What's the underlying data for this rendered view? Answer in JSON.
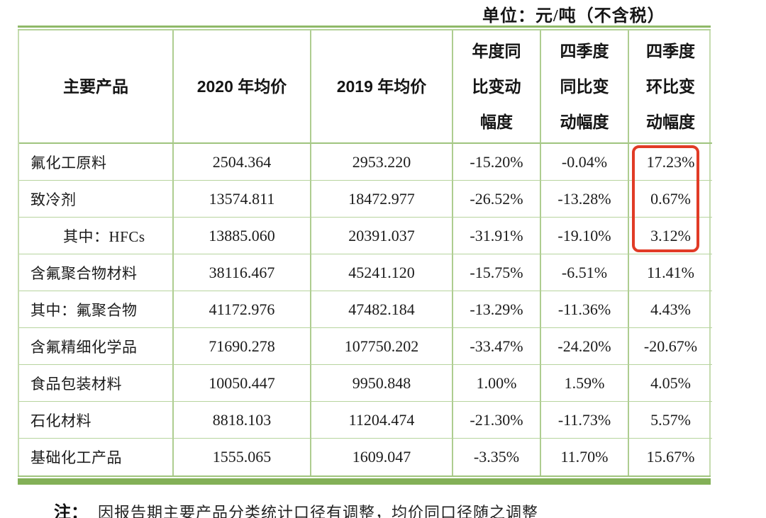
{
  "unit_label": "单位：元/吨（不含税）",
  "table": {
    "columns": [
      "主要产品",
      "2020 年均价",
      "2019 年均价",
      "年度同\n比变动\n幅度",
      "四季度\n同比变\n动幅度",
      "四季度\n环比变\n动幅度"
    ],
    "rows": [
      {
        "product": "氟化工原料",
        "avg_2020": "2504.364",
        "avg_2019": "2953.220",
        "yoy_annual": "-15.20%",
        "yoy_q4": "-0.04%",
        "qoq_q4": "17.23%",
        "indent": false
      },
      {
        "product": "致冷剂",
        "avg_2020": "13574.811",
        "avg_2019": "18472.977",
        "yoy_annual": "-26.52%",
        "yoy_q4": "-13.28%",
        "qoq_q4": "0.67%",
        "indent": false
      },
      {
        "product": "其中：HFCs",
        "avg_2020": "13885.060",
        "avg_2019": "20391.037",
        "yoy_annual": "-31.91%",
        "yoy_q4": "-19.10%",
        "qoq_q4": "3.12%",
        "indent": true
      },
      {
        "product": "含氟聚合物材料",
        "avg_2020": "38116.467",
        "avg_2019": "45241.120",
        "yoy_annual": "-15.75%",
        "yoy_q4": "-6.51%",
        "qoq_q4": "11.41%",
        "indent": false
      },
      {
        "product": "其中：氟聚合物",
        "avg_2020": "41172.976",
        "avg_2019": "47482.184",
        "yoy_annual": "-13.29%",
        "yoy_q4": "-11.36%",
        "qoq_q4": "4.43%",
        "indent": false
      },
      {
        "product": "含氟精细化学品",
        "avg_2020": "71690.278",
        "avg_2019": "107750.202",
        "yoy_annual": "-33.47%",
        "yoy_q4": "-24.20%",
        "qoq_q4": "-20.67%",
        "indent": false
      },
      {
        "product": "食品包装材料",
        "avg_2020": "10050.447",
        "avg_2019": "9950.848",
        "yoy_annual": "1.00%",
        "yoy_q4": "1.59%",
        "qoq_q4": "4.05%",
        "indent": false
      },
      {
        "product": "石化材料",
        "avg_2020": "8818.103",
        "avg_2019": "11204.474",
        "yoy_annual": "-21.30%",
        "yoy_q4": "-11.73%",
        "qoq_q4": "5.57%",
        "indent": false
      },
      {
        "product": "基础化工产品",
        "avg_2020": "1555.065",
        "avg_2019": "1609.047",
        "yoy_annual": "-3.35%",
        "yoy_q4": "11.70%",
        "qoq_q4": "15.67%",
        "indent": false
      }
    ],
    "highlight": {
      "description": "red rounded rectangle around Q4 QoQ change values of first three rows",
      "values": [
        "17.23%",
        "0.67%",
        "3.12%"
      ],
      "color": "#e13b26"
    }
  },
  "note": {
    "prefix": "注：",
    "text": "因报告期主要产品分类统计口径有调整，均价同口径随之调整"
  },
  "colors": {
    "table_border_green": "#8fb968",
    "grid_line_green": "#aecd90",
    "bottom_band_green": "#83b057",
    "highlight_red": "#e13b26",
    "text": "#1b1b1b"
  }
}
